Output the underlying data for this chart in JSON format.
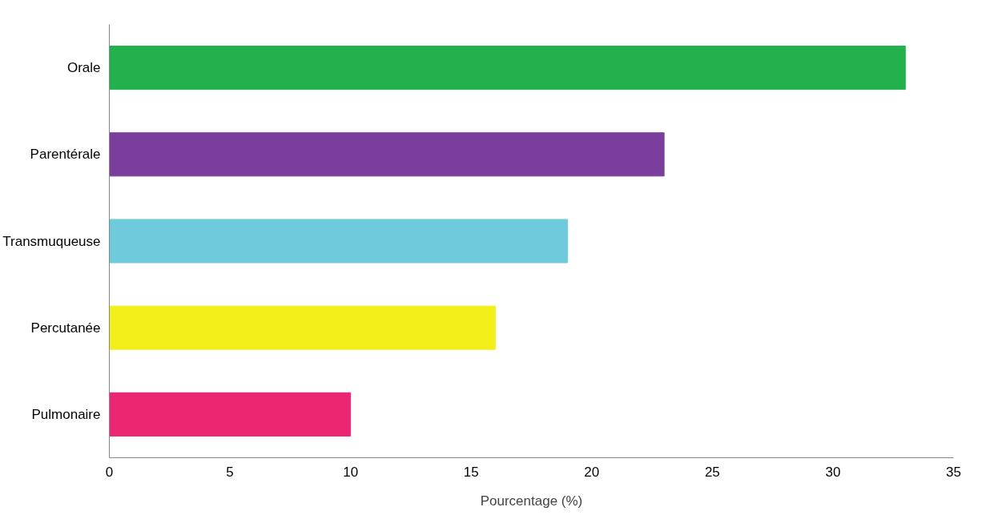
{
  "chart_data": {
    "type": "bar",
    "orientation": "horizontal",
    "xlabel": "Pourcentage (%)",
    "categories": [
      "Orale",
      "Parentérale",
      "Transmuqueuse",
      "Percutanée",
      "Pulmonaire"
    ],
    "values": [
      33,
      23,
      19,
      16,
      10
    ],
    "colors": [
      "#22b14c",
      "#7a3f9d",
      "#6fcbdc",
      "#f2ee1a",
      "#ea2670"
    ],
    "xlim": [
      0,
      35
    ],
    "xticks": [
      0,
      5,
      10,
      15,
      20,
      25,
      30,
      35
    ],
    "grid": false
  }
}
